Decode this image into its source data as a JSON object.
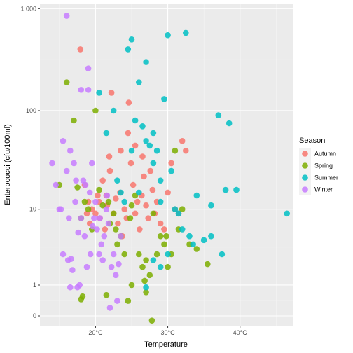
{
  "chart_data": {
    "type": "scatter",
    "xlabel": "Temperature",
    "ylabel": "Enterococci (cfu/100ml)",
    "x_ticks": [
      {
        "value": 20,
        "label": "20°C"
      },
      {
        "value": 30,
        "label": "30°C"
      },
      {
        "value": 40,
        "label": "40°C"
      }
    ],
    "y_ticks": [
      {
        "value": 0,
        "label": "0"
      },
      {
        "value": 1,
        "label": "1"
      },
      {
        "value": 10,
        "label": "10"
      },
      {
        "value": 100,
        "label": "100"
      },
      {
        "value": 1000,
        "label": "1 000"
      }
    ],
    "xlim": [
      12.3,
      47.3
    ],
    "y_scale": "log10(y+1)",
    "ylim": [
      -0.1,
      1000
    ],
    "grid": true,
    "legend": {
      "title": "Season",
      "placement": "right"
    },
    "series": [
      {
        "name": "Autumn",
        "color": "#F8766D",
        "points": [
          [
            17.9,
            400
          ],
          [
            18.5,
            18
          ],
          [
            19.0,
            12
          ],
          [
            19.2,
            7
          ],
          [
            19.5,
            10
          ],
          [
            20.0,
            9
          ],
          [
            20.3,
            14
          ],
          [
            20.6,
            8
          ],
          [
            21.0,
            20
          ],
          [
            21.3,
            6
          ],
          [
            21.6,
            11
          ],
          [
            21.9,
            35
          ],
          [
            22.2,
            150
          ],
          [
            22.5,
            9
          ],
          [
            22.8,
            13
          ],
          [
            23.1,
            7
          ],
          [
            23.4,
            15
          ],
          [
            23.7,
            5
          ],
          [
            24.0,
            10
          ],
          [
            24.3,
            8
          ],
          [
            24.6,
            120
          ],
          [
            24.9,
            30
          ],
          [
            25.2,
            18
          ],
          [
            25.5,
            9
          ],
          [
            25.8,
            12
          ],
          [
            26.1,
            6
          ],
          [
            26.4,
            14
          ],
          [
            26.7,
            22
          ],
          [
            27.0,
            11
          ],
          [
            27.3,
            8
          ],
          [
            27.6,
            25
          ],
          [
            27.9,
            16
          ],
          [
            28.2,
            9
          ],
          [
            28.5,
            12
          ],
          [
            29.0,
            7
          ],
          [
            29.5,
            6
          ],
          [
            30.0,
            15
          ],
          [
            30.5,
            30
          ],
          [
            31.0,
            10
          ],
          [
            31.5,
            9
          ],
          [
            32.0,
            50
          ],
          [
            32.5,
            40
          ],
          [
            20.5,
            12
          ],
          [
            22.0,
            25
          ],
          [
            23.5,
            40
          ],
          [
            24.5,
            60
          ],
          [
            25.5,
            45
          ],
          [
            26.5,
            35
          ],
          [
            18.8,
            9
          ],
          [
            21.5,
            14
          ]
        ]
      },
      {
        "name": "Spring",
        "color": "#7CAE00",
        "points": [
          [
            15.0,
            18
          ],
          [
            16.0,
            190
          ],
          [
            17.0,
            80
          ],
          [
            17.5,
            17
          ],
          [
            18.0,
            0.45
          ],
          [
            18.0,
            8
          ],
          [
            18.5,
            12
          ],
          [
            19.0,
            10
          ],
          [
            19.5,
            6
          ],
          [
            20.0,
            100
          ],
          [
            20.5,
            16
          ],
          [
            21.0,
            11
          ],
          [
            21.5,
            0.6
          ],
          [
            22.0,
            7
          ],
          [
            22.5,
            9
          ],
          [
            23.0,
            4
          ],
          [
            23.5,
            5
          ],
          [
            24.0,
            3
          ],
          [
            24.5,
            0.4
          ],
          [
            25.0,
            11
          ],
          [
            25.0,
            1
          ],
          [
            25.5,
            14
          ],
          [
            26.0,
            3
          ],
          [
            26.5,
            2
          ],
          [
            27.0,
            2.5
          ],
          [
            27.0,
            0.7
          ],
          [
            27.5,
            1.5
          ],
          [
            28.0,
            9
          ],
          [
            28.5,
            3
          ],
          [
            29.0,
            5
          ],
          [
            29.5,
            4
          ],
          [
            30.0,
            2
          ],
          [
            30.5,
            3
          ],
          [
            31.0,
            40
          ],
          [
            31.5,
            6
          ],
          [
            32.0,
            10
          ],
          [
            33.0,
            4
          ],
          [
            34.0,
            3.5
          ],
          [
            35.5,
            2.2
          ],
          [
            18.2,
            0.55
          ],
          [
            26.8,
            1.2
          ],
          [
            27.8,
            -0.1
          ],
          [
            22.8,
            6
          ],
          [
            24.8,
            8
          ],
          [
            21.8,
            12
          ],
          [
            29.8,
            5
          ]
        ]
      },
      {
        "name": "Summer",
        "color": "#00BFC4",
        "points": [
          [
            20.5,
            150
          ],
          [
            21.5,
            60
          ],
          [
            22.5,
            100
          ],
          [
            23.0,
            20
          ],
          [
            23.5,
            15
          ],
          [
            24.0,
            12
          ],
          [
            24.5,
            400
          ],
          [
            25.0,
            500
          ],
          [
            25.5,
            80
          ],
          [
            26.0,
            190
          ],
          [
            26.5,
            70
          ],
          [
            27.0,
            300
          ],
          [
            27.5,
            45
          ],
          [
            28.0,
            60
          ],
          [
            28.5,
            40
          ],
          [
            29.0,
            20
          ],
          [
            29.5,
            130
          ],
          [
            30.0,
            550
          ],
          [
            30.5,
            25
          ],
          [
            31.0,
            10
          ],
          [
            31.5,
            9
          ],
          [
            32.0,
            6
          ],
          [
            32.5,
            580
          ],
          [
            33.0,
            5
          ],
          [
            33.5,
            4
          ],
          [
            34.0,
            14
          ],
          [
            35.0,
            4.5
          ],
          [
            36.0,
            11
          ],
          [
            37.0,
            90
          ],
          [
            37.5,
            3
          ],
          [
            38.0,
            16
          ],
          [
            38.5,
            75
          ],
          [
            39.5,
            16
          ],
          [
            46.5,
            9
          ],
          [
            27.0,
            0.9
          ],
          [
            28.0,
            2.5
          ],
          [
            29.0,
            2
          ],
          [
            30.0,
            3
          ],
          [
            36.0,
            5
          ],
          [
            25.0,
            40
          ],
          [
            27.0,
            50
          ],
          [
            28.0,
            30
          ],
          [
            26.0,
            15
          ],
          [
            29.0,
            12
          ]
        ]
      },
      {
        "name": "Winter",
        "color": "#C77CFF",
        "points": [
          [
            14.0,
            30
          ],
          [
            14.5,
            18
          ],
          [
            15.0,
            10
          ],
          [
            15.5,
            50
          ],
          [
            15.5,
            3
          ],
          [
            16.0,
            850
          ],
          [
            16.0,
            25
          ],
          [
            16.2,
            2.5
          ],
          [
            16.5,
            40
          ],
          [
            16.5,
            0.9
          ],
          [
            16.8,
            1.8
          ],
          [
            17.0,
            30
          ],
          [
            17.2,
            12
          ],
          [
            17.5,
            0.9
          ],
          [
            17.8,
            1
          ],
          [
            18.0,
            160
          ],
          [
            18.0,
            8
          ],
          [
            18.3,
            20
          ],
          [
            18.5,
            5
          ],
          [
            18.8,
            2
          ],
          [
            19.0,
            160
          ],
          [
            19.0,
            260
          ],
          [
            19.3,
            3
          ],
          [
            19.5,
            30
          ],
          [
            19.8,
            8
          ],
          [
            20.0,
            12
          ],
          [
            20.2,
            6
          ],
          [
            20.5,
            3
          ],
          [
            20.8,
            4
          ],
          [
            21.0,
            2.5
          ],
          [
            21.2,
            5
          ],
          [
            21.5,
            10
          ],
          [
            21.8,
            7
          ],
          [
            22.0,
            0.2
          ],
          [
            22.2,
            2
          ],
          [
            22.5,
            3
          ],
          [
            22.8,
            1.5
          ],
          [
            23.0,
            0.4
          ],
          [
            23.2,
            2.2
          ],
          [
            23.5,
            5
          ],
          [
            15.2,
            10
          ],
          [
            16.3,
            8
          ],
          [
            17.3,
            20
          ],
          [
            18.6,
            18
          ],
          [
            19.2,
            15
          ],
          [
            19.6,
            6.5
          ],
          [
            20.6,
            8
          ],
          [
            21.6,
            14
          ],
          [
            17.6,
            5.5
          ],
          [
            16.6,
            2.6
          ]
        ]
      }
    ]
  }
}
